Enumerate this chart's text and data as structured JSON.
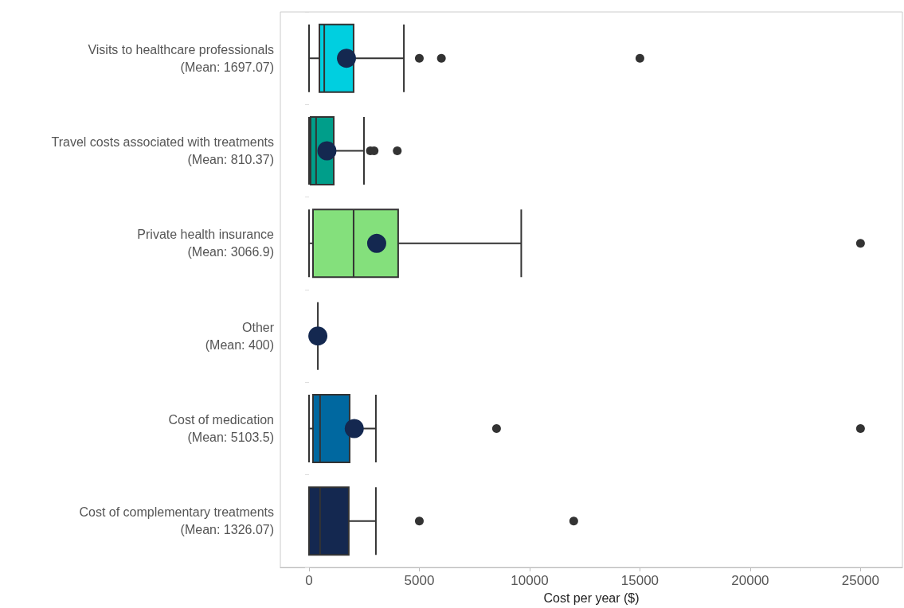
{
  "chart_data": {
    "type": "box",
    "orientation": "horizontal",
    "xlabel": "Cost per year ($)",
    "categories": [
      "Visits to healthcare professionals\n(Mean: 1697.07)",
      "Travel costs associated with treatments\n(Mean: 810.37)",
      "Private health insurance\n(Mean: 3066.9)",
      "Other\n(Mean: 400)",
      "Cost of medication\n(Mean: 5103.5)",
      "Cost of complementary treatments\n(Mean: 1326.07)"
    ],
    "colors": [
      "#00cfe0",
      "#009e8a",
      "#84e07c",
      "#333333",
      "#0068a0",
      "#142850"
    ],
    "boxes": [
      {
        "low": 0,
        "q1": 470,
        "median": 690,
        "q3": 2020,
        "high": 4300,
        "mean": 1697.07,
        "outliers": [
          5000,
          6000,
          15000
        ]
      },
      {
        "low": 0,
        "q1": 70,
        "median": 320,
        "q3": 1120,
        "high": 2490,
        "mean": 810.37,
        "outliers": [
          2780,
          2950,
          4000
        ]
      },
      {
        "low": 0,
        "q1": 180,
        "median": 2020,
        "q3": 4040,
        "high": 9620,
        "mean": 3066.9,
        "outliers": [
          25000
        ]
      },
      {
        "low": 400,
        "q1": 400,
        "median": 400,
        "q3": 400,
        "high": 400,
        "mean": 400
      },
      {
        "low": 0,
        "q1": 180,
        "median": 500,
        "q3": 1840,
        "high": 3030,
        "mean": 2050,
        "outliers": [
          8500,
          25000
        ]
      },
      {
        "low": 0,
        "q1": 0,
        "median": 500,
        "q3": 1800,
        "high": 3030,
        "outliers": [
          5000,
          12000
        ]
      }
    ],
    "xlim": [
      -1300,
      26900
    ],
    "xticks": [
      0,
      5000,
      10000,
      15000,
      20000,
      25000
    ],
    "grid": false
  }
}
